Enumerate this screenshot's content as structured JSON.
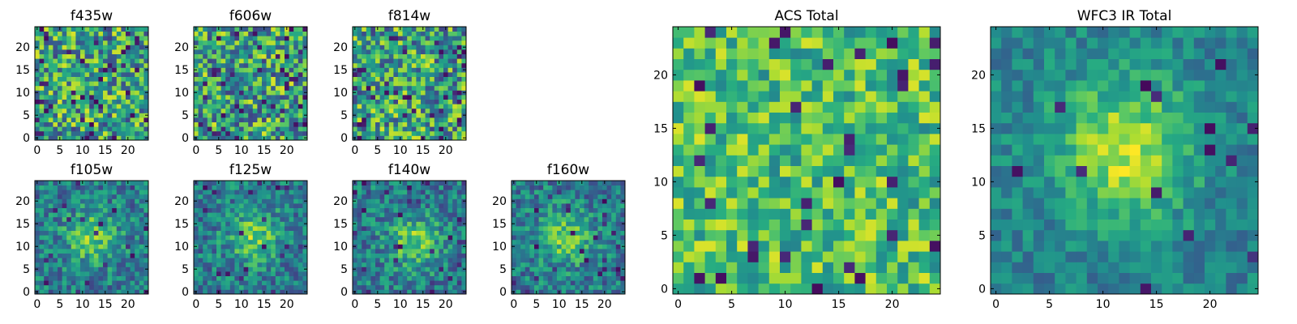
{
  "chart_data": [
    {
      "type": "heatmap",
      "title": "f435w",
      "grid_size": [
        25,
        25
      ],
      "colormap": "viridis",
      "xticks": [
        0,
        5,
        10,
        15,
        20
      ],
      "yticks": [
        0,
        5,
        10,
        15,
        20
      ],
      "xlim": [
        0,
        24
      ],
      "ylim": [
        0,
        24
      ],
      "pattern": "noise",
      "seed": 11
    },
    {
      "type": "heatmap",
      "title": "f606w",
      "grid_size": [
        25,
        25
      ],
      "colormap": "viridis",
      "xticks": [
        0,
        5,
        10,
        15,
        20
      ],
      "yticks": [
        0,
        5,
        10,
        15,
        20
      ],
      "xlim": [
        0,
        24
      ],
      "ylim": [
        0,
        24
      ],
      "pattern": "noise",
      "seed": 23
    },
    {
      "type": "heatmap",
      "title": "f814w",
      "grid_size": [
        25,
        25
      ],
      "colormap": "viridis",
      "xticks": [
        0,
        5,
        10,
        15,
        20
      ],
      "yticks": [
        0,
        5,
        10,
        15,
        20
      ],
      "xlim": [
        0,
        24
      ],
      "ylim": [
        0,
        24
      ],
      "pattern": "noise",
      "seed": 37
    },
    {
      "type": "heatmap",
      "title": "f105w",
      "grid_size": [
        25,
        25
      ],
      "colormap": "viridis",
      "xticks": [
        0,
        5,
        10,
        15,
        20
      ],
      "yticks": [
        0,
        5,
        10,
        15,
        20
      ],
      "xlim": [
        0,
        24
      ],
      "ylim": [
        0,
        24
      ],
      "pattern": "peak",
      "center": [
        12,
        12
      ],
      "seed": 41
    },
    {
      "type": "heatmap",
      "title": "f125w",
      "grid_size": [
        25,
        25
      ],
      "colormap": "viridis",
      "xticks": [
        0,
        5,
        10,
        15,
        20
      ],
      "yticks": [
        0,
        5,
        10,
        15,
        20
      ],
      "xlim": [
        0,
        24
      ],
      "ylim": [
        0,
        24
      ],
      "pattern": "peak",
      "center": [
        13,
        12
      ],
      "seed": 53
    },
    {
      "type": "heatmap",
      "title": "f140w",
      "grid_size": [
        25,
        25
      ],
      "colormap": "viridis",
      "xticks": [
        0,
        5,
        10,
        15,
        20
      ],
      "yticks": [
        0,
        5,
        10,
        15,
        20
      ],
      "xlim": [
        0,
        24
      ],
      "ylim": [
        0,
        24
      ],
      "pattern": "peak",
      "center": [
        13,
        11
      ],
      "seed": 67
    },
    {
      "type": "heatmap",
      "title": "f160w",
      "grid_size": [
        25,
        25
      ],
      "colormap": "viridis",
      "xticks": [
        0,
        5,
        10,
        15,
        20
      ],
      "yticks": [
        0,
        5,
        10,
        15,
        20
      ],
      "xlim": [
        0,
        24
      ],
      "ylim": [
        0,
        24
      ],
      "pattern": "peak",
      "center": [
        11,
        12
      ],
      "seed": 79
    },
    {
      "type": "heatmap",
      "title": "ACS Total",
      "grid_size": [
        25,
        25
      ],
      "colormap": "viridis",
      "xticks": [
        0,
        5,
        10,
        15,
        20
      ],
      "yticks": [
        0,
        5,
        10,
        15,
        20
      ],
      "xlim": [
        0,
        24
      ],
      "ylim": [
        0,
        24
      ],
      "pattern": "noise-bright",
      "seed": 97
    },
    {
      "type": "heatmap",
      "title": "WFC3 IR Total",
      "grid_size": [
        25,
        25
      ],
      "colormap": "viridis",
      "xticks": [
        0,
        5,
        10,
        15,
        20
      ],
      "yticks": [
        0,
        5,
        10,
        15,
        20
      ],
      "xlim": [
        0,
        24
      ],
      "ylim": [
        0,
        24
      ],
      "pattern": "peak-strong",
      "center": [
        12,
        13
      ],
      "seed": 131
    }
  ]
}
